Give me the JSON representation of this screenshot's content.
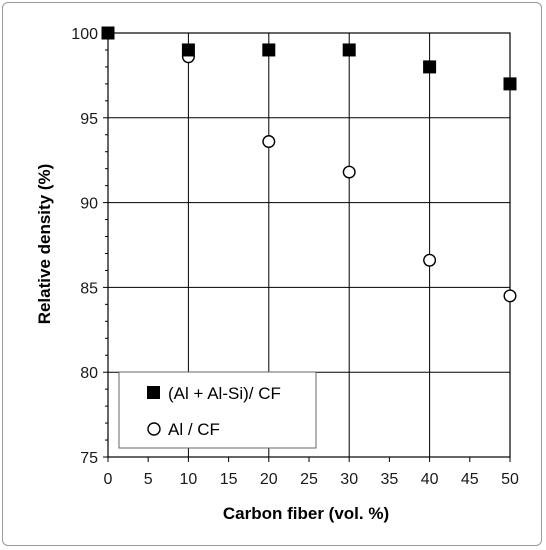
{
  "chart_data": {
    "type": "scatter",
    "title": "",
    "xlabel": "Carbon fiber (vol. %)",
    "ylabel": "Relative density (%)",
    "xlim": [
      0,
      50
    ],
    "ylim": [
      75,
      100
    ],
    "xticks": [
      0,
      5,
      10,
      15,
      20,
      25,
      30,
      35,
      40,
      45,
      50
    ],
    "yticks": [
      75,
      80,
      85,
      90,
      95,
      100
    ],
    "grid": true,
    "legend_position": "bottom-left",
    "series": [
      {
        "name": "(Al + Al-Si)/ CF",
        "marker": "filled-square",
        "color": "#000000",
        "x": [
          0,
          10,
          20,
          30,
          40,
          50
        ],
        "y": [
          100,
          99,
          99,
          99,
          98,
          97
        ]
      },
      {
        "name": "Al / CF",
        "marker": "open-circle",
        "color": "#000000",
        "x": [
          0,
          10,
          20,
          30,
          40,
          50
        ],
        "y": [
          100,
          98.6,
          93.6,
          91.8,
          86.6,
          84.5
        ]
      }
    ]
  }
}
